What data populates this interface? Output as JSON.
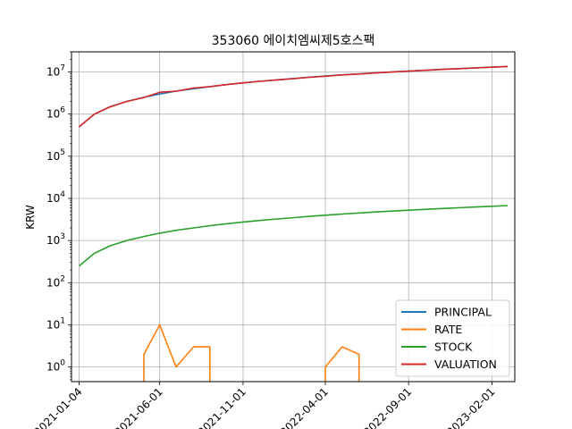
{
  "chart_data": {
    "type": "line",
    "title": "353060 에이치엠씨제5호스팩",
    "xlabel": "",
    "ylabel": "KRW",
    "yscale": "log",
    "ylim": [
      0.45,
      30000000
    ],
    "xlim": [
      "2020-12-21",
      "2023-03-15"
    ],
    "grid": true,
    "legend_position": "lower-right",
    "x_ticks": [
      {
        "date": "2021-01-04",
        "label": "2021-01-04"
      },
      {
        "date": "2021-06-01",
        "label": "2021-06-01"
      },
      {
        "date": "2021-11-01",
        "label": "2021-11-01"
      },
      {
        "date": "2022-04-01",
        "label": "2022-04-01"
      },
      {
        "date": "2022-09-01",
        "label": "2022-09-01"
      },
      {
        "date": "2023-02-01",
        "label": "2023-02-01"
      }
    ],
    "y_ticks": [
      {
        "value": 1,
        "base": "10",
        "exp": "0"
      },
      {
        "value": 10,
        "base": "10",
        "exp": "1"
      },
      {
        "value": 100,
        "base": "10",
        "exp": "2"
      },
      {
        "value": 1000,
        "base": "10",
        "exp": "3"
      },
      {
        "value": 10000,
        "base": "10",
        "exp": "4"
      },
      {
        "value": 100000,
        "base": "10",
        "exp": "5"
      },
      {
        "value": 1000000,
        "base": "10",
        "exp": "6"
      },
      {
        "value": 10000000,
        "base": "10",
        "exp": "7"
      }
    ],
    "series": [
      {
        "name": "PRINCIPAL",
        "color": "#1f77b4",
        "points": [
          [
            "2021-01-04",
            500000
          ],
          [
            "2021-02-01",
            1000000
          ],
          [
            "2021-03-02",
            1500000
          ],
          [
            "2021-04-01",
            2000000
          ],
          [
            "2021-05-03",
            2500000
          ],
          [
            "2021-06-01",
            3000000
          ],
          [
            "2021-07-01",
            3500000
          ],
          [
            "2021-08-02",
            4000000
          ],
          [
            "2021-09-01",
            4500000
          ],
          [
            "2021-10-01",
            5000000
          ],
          [
            "2021-11-01",
            5500000
          ],
          [
            "2021-12-01",
            6000000
          ],
          [
            "2022-01-03",
            6500000
          ],
          [
            "2022-02-03",
            7000000
          ],
          [
            "2022-03-02",
            7500000
          ],
          [
            "2022-04-01",
            8000000
          ],
          [
            "2022-05-02",
            8500000
          ],
          [
            "2022-06-02",
            9000000
          ],
          [
            "2022-07-01",
            9500000
          ],
          [
            "2022-08-01",
            10000000
          ],
          [
            "2022-09-01",
            10500000
          ],
          [
            "2022-10-04",
            11000000
          ],
          [
            "2022-11-01",
            11500000
          ],
          [
            "2022-12-01",
            12000000
          ],
          [
            "2023-01-02",
            12500000
          ],
          [
            "2023-02-01",
            13000000
          ],
          [
            "2023-03-02",
            13500000
          ]
        ]
      },
      {
        "name": "RATE",
        "color": "#ff7f0e",
        "points": [
          [
            "2021-01-04",
            0
          ],
          [
            "2021-02-01",
            0
          ],
          [
            "2021-03-02",
            0
          ],
          [
            "2021-04-01",
            0
          ],
          [
            "2021-05-03",
            2
          ],
          [
            "2021-06-01",
            10
          ],
          [
            "2021-07-01",
            1
          ],
          [
            "2021-08-02",
            3
          ],
          [
            "2021-09-01",
            3
          ],
          [
            "2021-10-01",
            0
          ],
          [
            "2021-11-01",
            0
          ],
          [
            "2021-12-01",
            0
          ],
          [
            "2022-01-03",
            0
          ],
          [
            "2022-02-03",
            0
          ],
          [
            "2022-03-02",
            0
          ],
          [
            "2022-04-01",
            1
          ],
          [
            "2022-05-02",
            3
          ],
          [
            "2022-06-02",
            2
          ],
          [
            "2022-07-01",
            0
          ],
          [
            "2022-08-01",
            0
          ],
          [
            "2022-09-01",
            0
          ],
          [
            "2022-10-04",
            0
          ],
          [
            "2022-11-01",
            0
          ],
          [
            "2022-12-01",
            0
          ],
          [
            "2023-01-02",
            0
          ],
          [
            "2023-02-01",
            0
          ],
          [
            "2023-03-02",
            0
          ]
        ]
      },
      {
        "name": "STOCK",
        "color": "#2ca02c",
        "points": [
          [
            "2021-01-04",
            250
          ],
          [
            "2021-02-01",
            500
          ],
          [
            "2021-03-02",
            750
          ],
          [
            "2021-04-01",
            1000
          ],
          [
            "2021-05-03",
            1250
          ],
          [
            "2021-06-01",
            1500
          ],
          [
            "2021-07-01",
            1750
          ],
          [
            "2021-08-02",
            2000
          ],
          [
            "2021-09-01",
            2250
          ],
          [
            "2021-10-01",
            2500
          ],
          [
            "2021-11-01",
            2750
          ],
          [
            "2021-12-01",
            3000
          ],
          [
            "2022-01-03",
            3250
          ],
          [
            "2022-02-03",
            3500
          ],
          [
            "2022-03-02",
            3750
          ],
          [
            "2022-04-01",
            4000
          ],
          [
            "2022-05-02",
            4250
          ],
          [
            "2022-06-02",
            4500
          ],
          [
            "2022-07-01",
            4750
          ],
          [
            "2022-08-01",
            5000
          ],
          [
            "2022-09-01",
            5250
          ],
          [
            "2022-10-04",
            5500
          ],
          [
            "2022-11-01",
            5750
          ],
          [
            "2022-12-01",
            6000
          ],
          [
            "2023-01-02",
            6250
          ],
          [
            "2023-02-01",
            6500
          ],
          [
            "2023-03-02",
            6750
          ]
        ]
      },
      {
        "name": "VALUATION",
        "color": "#d62728",
        "points": [
          [
            "2021-01-04",
            500000
          ],
          [
            "2021-02-01",
            1000000
          ],
          [
            "2021-03-02",
            1490000
          ],
          [
            "2021-04-01",
            1990000
          ],
          [
            "2021-05-03",
            2480000
          ],
          [
            "2021-06-01",
            3300000
          ],
          [
            "2021-07-01",
            3500000
          ],
          [
            "2021-08-02",
            4150000
          ],
          [
            "2021-09-01",
            4500000
          ],
          [
            "2021-10-01",
            5000000
          ],
          [
            "2021-11-01",
            5480000
          ],
          [
            "2021-12-01",
            5980000
          ],
          [
            "2022-01-03",
            6480000
          ],
          [
            "2022-02-03",
            6970000
          ],
          [
            "2022-03-02",
            7470000
          ],
          [
            "2022-04-01",
            7900000
          ],
          [
            "2022-05-02",
            8500000
          ],
          [
            "2022-06-02",
            8950000
          ],
          [
            "2022-07-01",
            9450000
          ],
          [
            "2022-08-01",
            9950000
          ],
          [
            "2022-09-01",
            10450000
          ],
          [
            "2022-10-04",
            10950000
          ],
          [
            "2022-11-01",
            11450000
          ],
          [
            "2022-12-01",
            11950000
          ],
          [
            "2023-01-02",
            12450000
          ],
          [
            "2023-02-01",
            12950000
          ],
          [
            "2023-03-02",
            13500000
          ]
        ]
      }
    ]
  }
}
